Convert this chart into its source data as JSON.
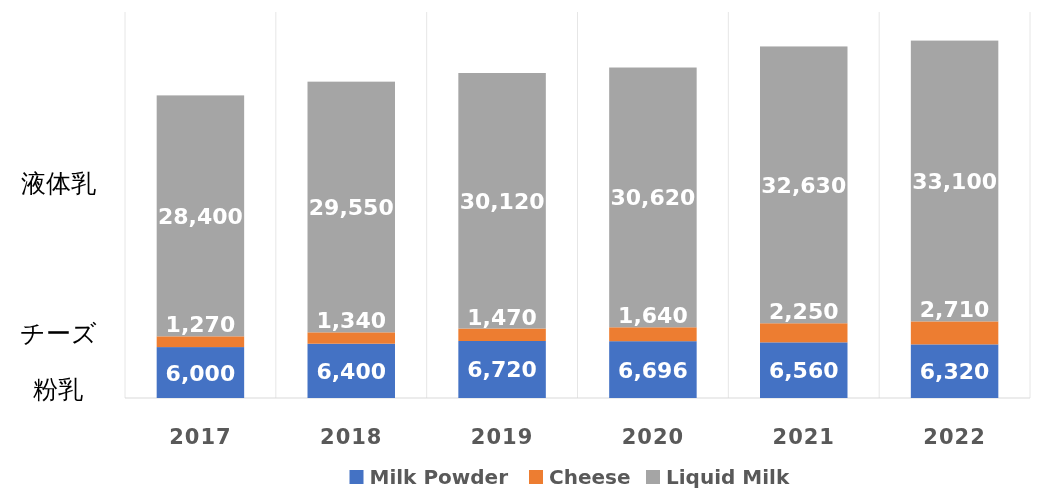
{
  "chart_data": {
    "type": "bar",
    "stacked": true,
    "grid": "x",
    "legend": "bottom",
    "categories": [
      "2017",
      "2018",
      "2019",
      "2020",
      "2021",
      "2022"
    ],
    "series": [
      {
        "name": "Milk Powder",
        "color": "#4472c4",
        "values": [
          6000,
          6400,
          6720,
          6696,
          6560,
          6320
        ],
        "value_labels": [
          "6,000",
          "6,400",
          "6,720",
          "6,696",
          "6,560",
          "6,320"
        ]
      },
      {
        "name": "Cheese",
        "color": "#ed7d31",
        "values": [
          1270,
          1340,
          1470,
          1640,
          2250,
          2710
        ],
        "value_labels": [
          "1,270",
          "1,340",
          "1,470",
          "1,640",
          "2,250",
          "2,710"
        ]
      },
      {
        "name": "Liquid Milk",
        "color": "#a5a5a5",
        "values": [
          28400,
          29550,
          30120,
          30620,
          32630,
          33100
        ],
        "value_labels": [
          "28,400",
          "29,550",
          "30,120",
          "30,620",
          "32,630",
          "33,100"
        ]
      }
    ],
    "annotations": [
      "液体乳",
      "チーズ",
      "粉乳"
    ]
  }
}
